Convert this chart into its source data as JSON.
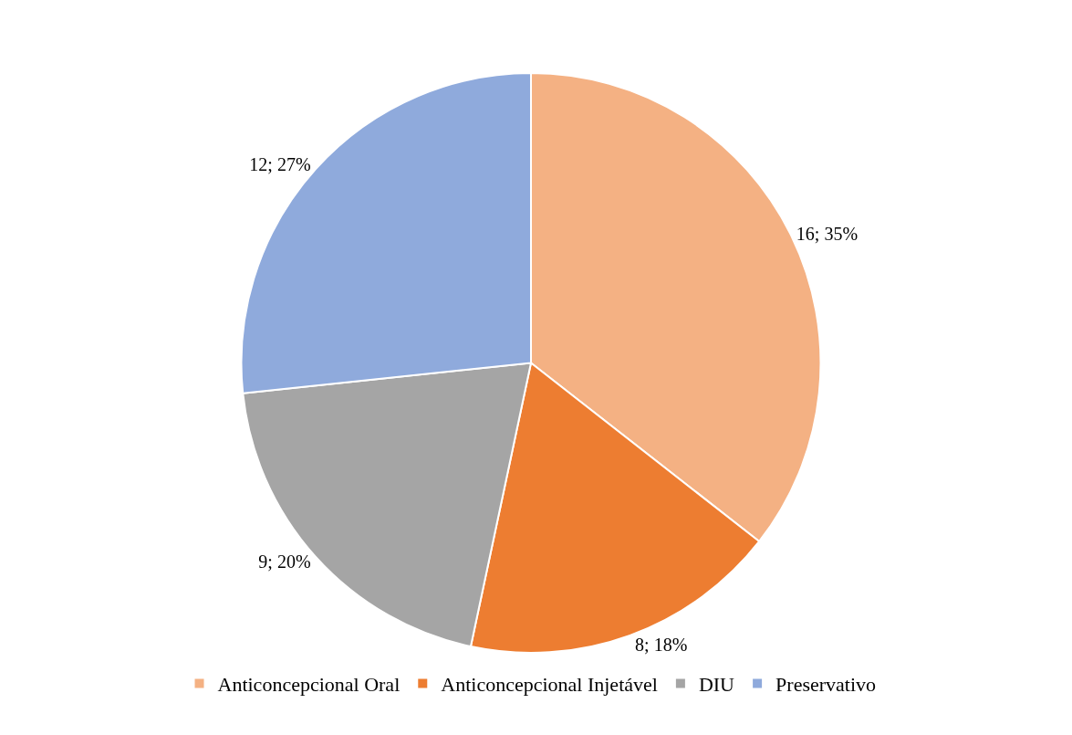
{
  "chart_data": {
    "type": "pie",
    "categories": [
      "Anticoncepcional Oral",
      "Anticoncepcional Injetável",
      "DIU",
      "Preservativo"
    ],
    "values": [
      16,
      8,
      9,
      12
    ],
    "colors": [
      "#f4b183",
      "#ed7d31",
      "#a5a5a5",
      "#8faadc"
    ],
    "value_labels": [
      "16; 35%",
      "8; 18%",
      "9; 20%",
      "12; 27%"
    ],
    "legend": "bottom"
  }
}
